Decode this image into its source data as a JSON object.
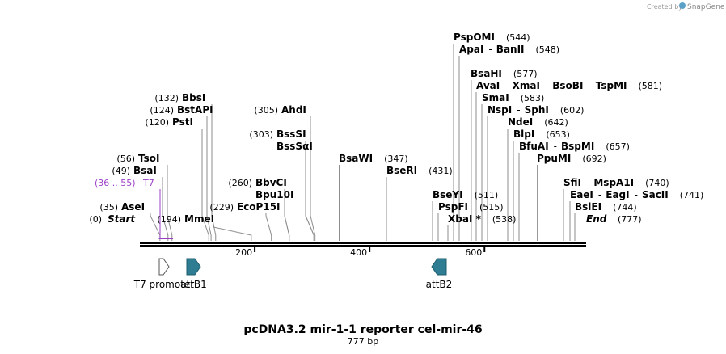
{
  "credit": {
    "prefix": "Created by",
    "brand": "SnapGene"
  },
  "map": {
    "title": "pcDNA3.2 mir-1-1 reporter cel-mir-46",
    "length_label": "777 bp",
    "total_bp": 777,
    "start_label": "Start",
    "start_pos": "(0)",
    "end_label": "End",
    "end_pos": "(777)",
    "ticks": [
      {
        "bp": 200,
        "label": "200"
      },
      {
        "bp": 400,
        "label": "400"
      },
      {
        "bp": 600,
        "label": "600"
      }
    ],
    "primer": {
      "name": "T7",
      "range": "(36 .. 55)",
      "start": 36,
      "end": 55,
      "color": "#9b3fc9"
    }
  },
  "sites": [
    {
      "id": "asei",
      "names": [
        "AseI"
      ],
      "pos": "(35)",
      "bp": 35,
      "pos_first": true
    },
    {
      "id": "bsai",
      "names": [
        "BsaI"
      ],
      "pos": "(49)",
      "bp": 49,
      "pos_first": true
    },
    {
      "id": "tsoi",
      "names": [
        "TsoI"
      ],
      "pos": "(56)",
      "bp": 56,
      "pos_first": true
    },
    {
      "id": "psti",
      "names": [
        "PstI"
      ],
      "pos": "(120)",
      "bp": 120,
      "pos_first": true
    },
    {
      "id": "bstapi",
      "names": [
        "BstAPI"
      ],
      "pos": "(124)",
      "bp": 124,
      "pos_first": true
    },
    {
      "id": "bbsi",
      "names": [
        "BbsI"
      ],
      "pos": "(132)",
      "bp": 132,
      "pos_first": true
    },
    {
      "id": "mmei",
      "names": [
        "MmeI"
      ],
      "pos": "(194)",
      "bp": 194,
      "pos_first": true
    },
    {
      "id": "ecop15i",
      "names": [
        "EcoP15I"
      ],
      "pos": "(229)",
      "bp": 229,
      "pos_first": true
    },
    {
      "id": "bbvci",
      "names": [
        "BbvCI"
      ],
      "pos": "(260)",
      "bp": 260,
      "pos_first": true
    },
    {
      "id": "bpu10i",
      "names": [
        "Bpu10I"
      ],
      "pos": "",
      "bp": 260,
      "pos_first": true
    },
    {
      "id": "bsssi",
      "names": [
        "BssSI"
      ],
      "pos": "(303)",
      "bp": 303,
      "pos_first": true
    },
    {
      "id": "bsssai",
      "names": [
        "BssSαI"
      ],
      "pos": "",
      "bp": 303,
      "pos_first": true
    },
    {
      "id": "ahdi",
      "names": [
        "AhdI"
      ],
      "pos": "(305)",
      "bp": 305,
      "pos_first": true
    },
    {
      "id": "bsawi",
      "names": [
        "BsaWI"
      ],
      "pos": "(347)",
      "bp": 347,
      "pos_first": false
    },
    {
      "id": "bseri",
      "names": [
        "BseRI"
      ],
      "pos": "(431)",
      "bp": 431,
      "pos_first": false
    },
    {
      "id": "bseyi",
      "names": [
        "BseYI"
      ],
      "pos": "(511)",
      "bp": 511,
      "pos_first": false
    },
    {
      "id": "pspfi",
      "names": [
        "PspFI"
      ],
      "pos": "(515)",
      "bp": 515,
      "pos_first": false
    },
    {
      "id": "xbai",
      "names": [
        "XbaI *"
      ],
      "pos": "(538)",
      "bp": 538,
      "pos_first": false
    },
    {
      "id": "pspomi",
      "names": [
        "PspOMI"
      ],
      "pos": "(544)",
      "bp": 544,
      "pos_first": false
    },
    {
      "id": "apai",
      "names": [
        "ApaI",
        "BanII"
      ],
      "pos": "(548)",
      "bp": 548,
      "pos_first": false
    },
    {
      "id": "bsahi",
      "names": [
        "BsaHI"
      ],
      "pos": "(577)",
      "bp": 577,
      "pos_first": false
    },
    {
      "id": "avai",
      "names": [
        "AvaI",
        "XmaI",
        "BsoBI",
        "TspMI"
      ],
      "pos": "(581)",
      "bp": 581,
      "pos_first": false
    },
    {
      "id": "smai",
      "names": [
        "SmaI"
      ],
      "pos": "(583)",
      "bp": 583,
      "pos_first": false
    },
    {
      "id": "nspi",
      "names": [
        "NspI",
        "SphI"
      ],
      "pos": "(602)",
      "bp": 602,
      "pos_first": false
    },
    {
      "id": "ndei",
      "names": [
        "NdeI"
      ],
      "pos": "(642)",
      "bp": 642,
      "pos_first": false
    },
    {
      "id": "blpi",
      "names": [
        "BlpI"
      ],
      "pos": "(653)",
      "bp": 653,
      "pos_first": false
    },
    {
      "id": "bfuai",
      "names": [
        "BfuAI",
        "BspMI"
      ],
      "pos": "(657)",
      "bp": 657,
      "pos_first": false
    },
    {
      "id": "ppumi",
      "names": [
        "PpuMI"
      ],
      "pos": "(692)",
      "bp": 692,
      "pos_first": false
    },
    {
      "id": "sfii",
      "names": [
        "SfiI",
        "MspA1I"
      ],
      "pos": "(740)",
      "bp": 740,
      "pos_first": false
    },
    {
      "id": "eaei",
      "names": [
        "EaeI",
        "EagI",
        "SacII"
      ],
      "pos": "(741)",
      "bp": 741,
      "pos_first": false
    },
    {
      "id": "bsiei",
      "names": [
        "BsiEI"
      ],
      "pos": "(744)",
      "bp": 744,
      "pos_first": false
    }
  ],
  "features": [
    {
      "id": "t7-promoter",
      "label": "T7 promoter",
      "start": 36,
      "end": 55,
      "direction": "forward",
      "color": "#ffffff"
    },
    {
      "id": "attb1",
      "label": "attB1",
      "start": 83,
      "end": 107,
      "direction": "forward",
      "color": "#2e7d93"
    },
    {
      "id": "attb2",
      "label": "attB2",
      "start": 515,
      "end": 539,
      "direction": "reverse",
      "color": "#2e7d93"
    }
  ]
}
